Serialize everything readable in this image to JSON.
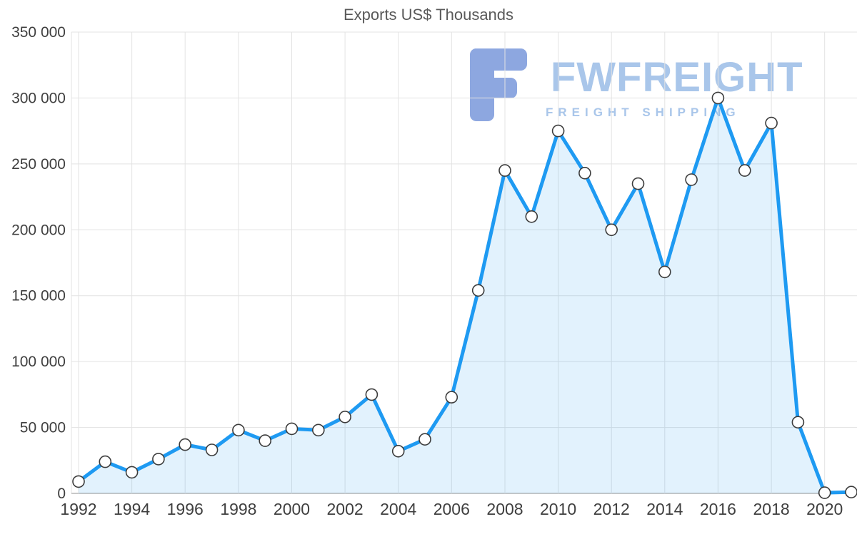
{
  "chart_data": {
    "type": "area",
    "title": "Exports US$ Thousands",
    "xlabel": "",
    "ylabel": "Exports US$ Thousands",
    "x": [
      1992,
      1993,
      1994,
      1995,
      1996,
      1997,
      1998,
      1999,
      2000,
      2001,
      2002,
      2003,
      2004,
      2005,
      2006,
      2007,
      2008,
      2009,
      2010,
      2011,
      2012,
      2013,
      2014,
      2015,
      2016,
      2017,
      2018,
      2019,
      2020,
      2021
    ],
    "values": [
      9000,
      24000,
      16000,
      26000,
      37000,
      33000,
      48000,
      40000,
      49000,
      48000,
      58000,
      75000,
      32000,
      41000,
      73000,
      154000,
      245000,
      210000,
      275000,
      243000,
      200000,
      235000,
      168000,
      238000,
      300000,
      245000,
      281000,
      54000,
      500,
      1000
    ],
    "ylim": [
      0,
      350000
    ],
    "y_ticks": [
      0,
      50000,
      100000,
      150000,
      200000,
      250000,
      300000,
      350000
    ],
    "y_tick_labels": [
      "0",
      "50 000",
      "100 000",
      "150 000",
      "200 000",
      "250 000",
      "300 000",
      "350 000"
    ],
    "x_tick_labels": [
      "1992",
      "1994",
      "1996",
      "1998",
      "2000",
      "2002",
      "2004",
      "2006",
      "2008",
      "2010",
      "2012",
      "2014",
      "2016",
      "2018",
      "2020"
    ],
    "grid": true,
    "legend_position": "none",
    "colors": {
      "line": "#1e9af2",
      "area": "rgba(30, 154, 242, 0.13)",
      "marker_fill": "#ffffff",
      "marker_stroke": "#3c3c3c",
      "grid": "#e3e3e3",
      "axis": "#b5b5b5",
      "title": "#595959",
      "tick": "#3f3f3f"
    }
  },
  "watermark": {
    "text": "FWFREIGHT",
    "subtext": "FREIGHT SHIPPING",
    "color": "#a9c6ea",
    "logo_color": "#7e9bdc"
  }
}
